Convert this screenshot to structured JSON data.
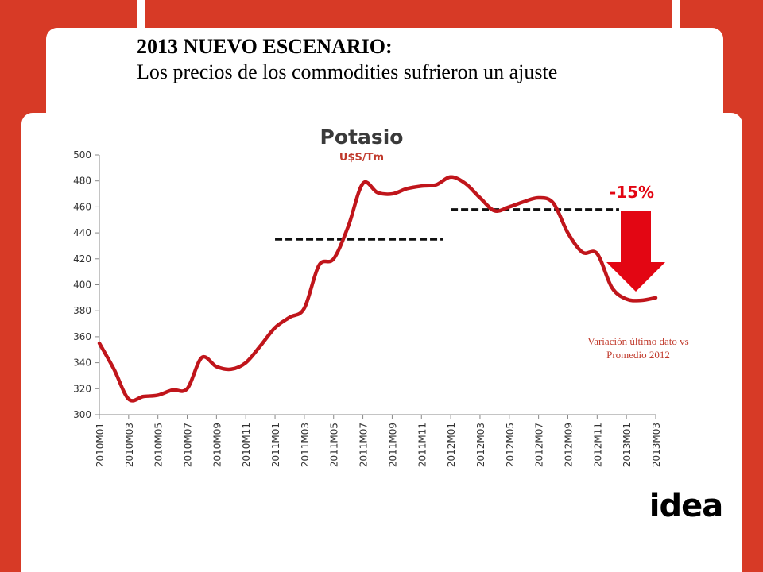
{
  "slide": {
    "heading_line1": "2013 NUEVO ESCENARIO:",
    "heading_line2": "Los precios de los commodities sufrieron un ajuste",
    "note": "Variación último dato vs Promedio 2012",
    "logo_text": "idea",
    "accent_color": "#d73a26"
  },
  "chart_data": {
    "type": "line",
    "title": "Potasio",
    "subtitle": "U$S/Tm",
    "ylim": [
      300,
      500
    ],
    "yticks": [
      300,
      320,
      340,
      360,
      380,
      400,
      420,
      440,
      460,
      480,
      500
    ],
    "grid": false,
    "line_color": "#c0151b",
    "categories": [
      "2010M01",
      "2010M02",
      "2010M03",
      "2010M04",
      "2010M05",
      "2010M06",
      "2010M07",
      "2010M08",
      "2010M09",
      "2010M10",
      "2010M11",
      "2010M12",
      "2011M01",
      "2011M02",
      "2011M03",
      "2011M04",
      "2011M05",
      "2011M06",
      "2011M07",
      "2011M08",
      "2011M09",
      "2011M10",
      "2011M11",
      "2011M12",
      "2012M01",
      "2012M02",
      "2012M03",
      "2012M04",
      "2012M05",
      "2012M06",
      "2012M07",
      "2012M08",
      "2012M09",
      "2012M10",
      "2012M11",
      "2012M12",
      "2013M01",
      "2013M02",
      "2013M03"
    ],
    "tick_labels": [
      "2010M01",
      "2010M03",
      "2010M05",
      "2010M07",
      "2010M09",
      "2010M11",
      "2011M01",
      "2011M03",
      "2011M05",
      "2011M07",
      "2011M09",
      "2011M11",
      "2012M01",
      "2012M03",
      "2012M05",
      "2012M07",
      "2012M09",
      "2012M11",
      "2013M01",
      "2013M03"
    ],
    "values": [
      355,
      335,
      312,
      314,
      315,
      319,
      320,
      344,
      337,
      335,
      340,
      353,
      367,
      375,
      382,
      415,
      420,
      445,
      478,
      471,
      470,
      474,
      476,
      477,
      483,
      478,
      467,
      457,
      460,
      464,
      467,
      463,
      440,
      425,
      424,
      398,
      389,
      388,
      390
    ],
    "reference_lines": [
      {
        "from": "2011M01",
        "to": "2011M12",
        "value": 435
      },
      {
        "from": "2012M01",
        "to": "2012M12",
        "value": 458
      }
    ],
    "annotation": {
      "label": "-15%",
      "color": "#e30613"
    }
  }
}
